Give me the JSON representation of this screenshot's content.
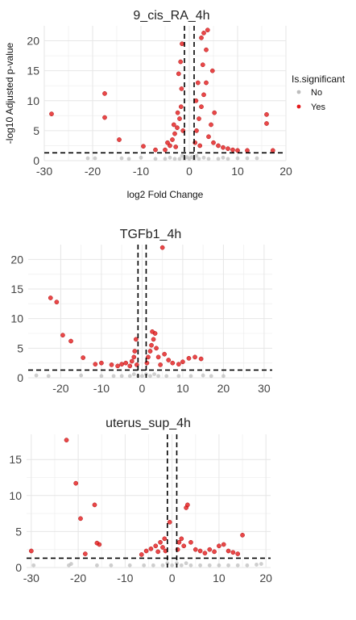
{
  "chart_data": [
    {
      "type": "scatter",
      "title": "9_cis_RA_4h",
      "xlabel": "log2 Fold Change",
      "ylabel": "-log10 Adjusted p-value",
      "xlim": [
        -30,
        20
      ],
      "ylim": [
        0,
        22.5
      ],
      "xticks": [
        "-30",
        "-20",
        "-10",
        "0",
        "10",
        "20"
      ],
      "yticks": [
        "0",
        "5",
        "10",
        "15",
        "20"
      ],
      "thresholds": {
        "x": [
          -1,
          1
        ],
        "y": 1.3
      },
      "grid": true,
      "legend": {
        "title": "Is.significant",
        "position": "right",
        "entries": [
          {
            "label": "No",
            "color": "#bdbdbd"
          },
          {
            "label": "Yes",
            "color": "#e41a1c"
          }
        ]
      },
      "series": [
        {
          "name": "No",
          "color": "#bdbdbd",
          "points": [
            [
              -21,
              0.4
            ],
            [
              -19.5,
              0.4
            ],
            [
              -14,
              0.4
            ],
            [
              -12.5,
              0.3
            ],
            [
              -7,
              0.3
            ],
            [
              -5,
              0.3
            ],
            [
              -3,
              0.3
            ],
            [
              -2,
              0.3
            ],
            [
              -1,
              0.3
            ],
            [
              0,
              0.3
            ],
            [
              1,
              0.3
            ],
            [
              2,
              0.3
            ],
            [
              4,
              0.3
            ],
            [
              6,
              0.3
            ],
            [
              8,
              0.3
            ],
            [
              10,
              0.4
            ],
            [
              12,
              0.4
            ],
            [
              14,
              0.4
            ],
            [
              -10,
              0.5
            ],
            [
              -4,
              0.5
            ],
            [
              3,
              0.5
            ],
            [
              7,
              0.5
            ],
            [
              -1.5,
              0.8
            ],
            [
              1.5,
              0.8
            ],
            [
              -0.5,
              0.6
            ],
            [
              0.5,
              0.6
            ]
          ]
        },
        {
          "name": "Yes",
          "color": "#e41a1c",
          "points": [
            [
              -28.5,
              7.8
            ],
            [
              -17.5,
              11.2
            ],
            [
              -17.5,
              7.2
            ],
            [
              -14.5,
              3.5
            ],
            [
              -9.5,
              2.4
            ],
            [
              -7,
              1.8
            ],
            [
              -5,
              1.8
            ],
            [
              -4,
              2.5
            ],
            [
              -3.5,
              3.5
            ],
            [
              -3,
              4.5
            ],
            [
              -2.5,
              5.5
            ],
            [
              -2,
              7
            ],
            [
              -1.7,
              9
            ],
            [
              -1.6,
              12
            ],
            [
              -2.2,
              14.5
            ],
            [
              -1.8,
              16.5
            ],
            [
              -1.5,
              19.5
            ],
            [
              -1.3,
              5
            ],
            [
              -2.8,
              2.3
            ],
            [
              -4.5,
              3
            ],
            [
              -3.2,
              6
            ],
            [
              -2.4,
              8
            ],
            [
              1.2,
              3
            ],
            [
              1.5,
              5
            ],
            [
              2,
              7
            ],
            [
              2.5,
              9
            ],
            [
              3,
              11
            ],
            [
              3.5,
              13
            ],
            [
              2.8,
              16
            ],
            [
              3.5,
              18.5
            ],
            [
              2.5,
              20.5
            ],
            [
              3,
              21.3
            ],
            [
              3.8,
              21.8
            ],
            [
              4,
              4
            ],
            [
              5,
              3
            ],
            [
              6,
              2.5
            ],
            [
              7,
              2.2
            ],
            [
              8,
              2
            ],
            [
              9,
              1.8
            ],
            [
              10,
              1.7
            ],
            [
              12,
              1.7
            ],
            [
              4.5,
              6
            ],
            [
              5.2,
              8
            ],
            [
              16,
              7.7
            ],
            [
              16,
              6.2
            ],
            [
              17.3,
              1.7
            ],
            [
              1.8,
              13
            ],
            [
              1.4,
              10
            ],
            [
              4.8,
              15
            ],
            [
              2.2,
              2.5
            ]
          ]
        }
      ]
    },
    {
      "type": "scatter",
      "title": "TGFb1_4h",
      "xlabel": "",
      "ylabel": "",
      "xlim": [
        -28,
        32
      ],
      "ylim": [
        0,
        22.5
      ],
      "xticks": [
        "-20",
        "-10",
        "0",
        "10",
        "20",
        "30"
      ],
      "yticks": [
        "0",
        "5",
        "10",
        "15",
        "20"
      ],
      "thresholds": {
        "x": [
          -1,
          1
        ],
        "y": 1.3
      },
      "grid": true,
      "series": [
        {
          "name": "No",
          "color": "#bdbdbd",
          "points": [
            [
              -26,
              0.4
            ],
            [
              -23,
              0.3
            ],
            [
              -15,
              0.4
            ],
            [
              -10,
              0.3
            ],
            [
              -7,
              0.3
            ],
            [
              -5,
              0.3
            ],
            [
              -3,
              0.3
            ],
            [
              -1,
              0.3
            ],
            [
              0,
              0.3
            ],
            [
              2,
              0.3
            ],
            [
              4,
              0.3
            ],
            [
              6,
              0.3
            ],
            [
              9,
              0.3
            ],
            [
              12,
              0.3
            ],
            [
              15,
              0.4
            ],
            [
              17,
              0.3
            ],
            [
              20,
              0.3
            ],
            [
              -2,
              0.6
            ],
            [
              1,
              0.6
            ],
            [
              3,
              0.6
            ]
          ]
        },
        {
          "name": "Yes",
          "color": "#e41a1c",
          "points": [
            [
              -22.5,
              13.5
            ],
            [
              -21,
              12.8
            ],
            [
              -19.5,
              7.2
            ],
            [
              -17.5,
              6.2
            ],
            [
              -14.5,
              3.4
            ],
            [
              -11.5,
              2.3
            ],
            [
              -10,
              2.5
            ],
            [
              -7.5,
              2.2
            ],
            [
              -6,
              2
            ],
            [
              -5,
              2.3
            ],
            [
              -4,
              2.5
            ],
            [
              -3,
              2
            ],
            [
              -2.5,
              2.8
            ],
            [
              -2,
              3.5
            ],
            [
              -1.8,
              4.5
            ],
            [
              -1.5,
              6.5
            ],
            [
              -1.3,
              2.2
            ],
            [
              1.2,
              2.5
            ],
            [
              1.5,
              3.5
            ],
            [
              2,
              4.5
            ],
            [
              2.3,
              5.5
            ],
            [
              2.8,
              6.5
            ],
            [
              3.2,
              7.5
            ],
            [
              2.5,
              7.8
            ],
            [
              3.5,
              5
            ],
            [
              4,
              3.5
            ],
            [
              5,
              22
            ],
            [
              5.5,
              4
            ],
            [
              6.5,
              3
            ],
            [
              7.5,
              2.5
            ],
            [
              9,
              2.3
            ],
            [
              10,
              2.7
            ],
            [
              11.5,
              3.3
            ],
            [
              13,
              3.5
            ],
            [
              14.5,
              3.2
            ],
            [
              4.5,
              2.2
            ]
          ]
        }
      ]
    },
    {
      "type": "scatter",
      "title": "uterus_sup_4h",
      "xlabel": "",
      "ylabel": "",
      "xlim": [
        -31,
        21
      ],
      "ylim": [
        0,
        18.5
      ],
      "xticks": [
        "-30",
        "-20",
        "-10",
        "0",
        "10",
        "20"
      ],
      "yticks": [
        "0",
        "5",
        "10",
        "15"
      ],
      "thresholds": {
        "x": [
          -1,
          1
        ],
        "y": 1.3
      },
      "grid": true,
      "series": [
        {
          "name": "No",
          "color": "#bdbdbd",
          "points": [
            [
              -29.5,
              0.3
            ],
            [
              -22,
              0.3
            ],
            [
              -21.5,
              0.5
            ],
            [
              -16,
              0.3
            ],
            [
              -13,
              0.3
            ],
            [
              -9,
              0.3
            ],
            [
              -6,
              0.3
            ],
            [
              -4,
              0.3
            ],
            [
              -2,
              0.3
            ],
            [
              0,
              0.3
            ],
            [
              2,
              0.3
            ],
            [
              4,
              0.3
            ],
            [
              6,
              0.3
            ],
            [
              8,
              0.3
            ],
            [
              10,
              0.3
            ],
            [
              12,
              0.3
            ],
            [
              14,
              0.3
            ],
            [
              16,
              0.3
            ],
            [
              18,
              0.4
            ],
            [
              19,
              0.5
            ],
            [
              -1,
              0.6
            ],
            [
              1,
              0.6
            ],
            [
              3,
              0.6
            ]
          ]
        },
        {
          "name": "Yes",
          "color": "#e41a1c",
          "points": [
            [
              -30,
              2.3
            ],
            [
              -22.5,
              17.7
            ],
            [
              -20.5,
              11.7
            ],
            [
              -19.5,
              6.8
            ],
            [
              -18.5,
              1.9
            ],
            [
              -16.5,
              8.7
            ],
            [
              -15.5,
              3.2
            ],
            [
              -16,
              3.4
            ],
            [
              -6.5,
              1.8
            ],
            [
              -5.5,
              2.3
            ],
            [
              -4.5,
              2.6
            ],
            [
              -3.5,
              3
            ],
            [
              -3,
              2.2
            ],
            [
              -2.5,
              3.5
            ],
            [
              -2,
              2.8
            ],
            [
              -1.6,
              4
            ],
            [
              -1.4,
              2.3
            ],
            [
              -0.5,
              6.3
            ],
            [
              1.2,
              2.5
            ],
            [
              1.5,
              3.5
            ],
            [
              2,
              4
            ],
            [
              2.5,
              3
            ],
            [
              3,
              8.3
            ],
            [
              3.3,
              8.7
            ],
            [
              4,
              3.5
            ],
            [
              5,
              2.5
            ],
            [
              6,
              2.3
            ],
            [
              7,
              2
            ],
            [
              8,
              2.5
            ],
            [
              9,
              2.2
            ],
            [
              10,
              3
            ],
            [
              11,
              3.2
            ],
            [
              12,
              2.3
            ],
            [
              13,
              2.1
            ],
            [
              14,
              1.9
            ],
            [
              15,
              4.5
            ]
          ]
        }
      ]
    }
  ]
}
